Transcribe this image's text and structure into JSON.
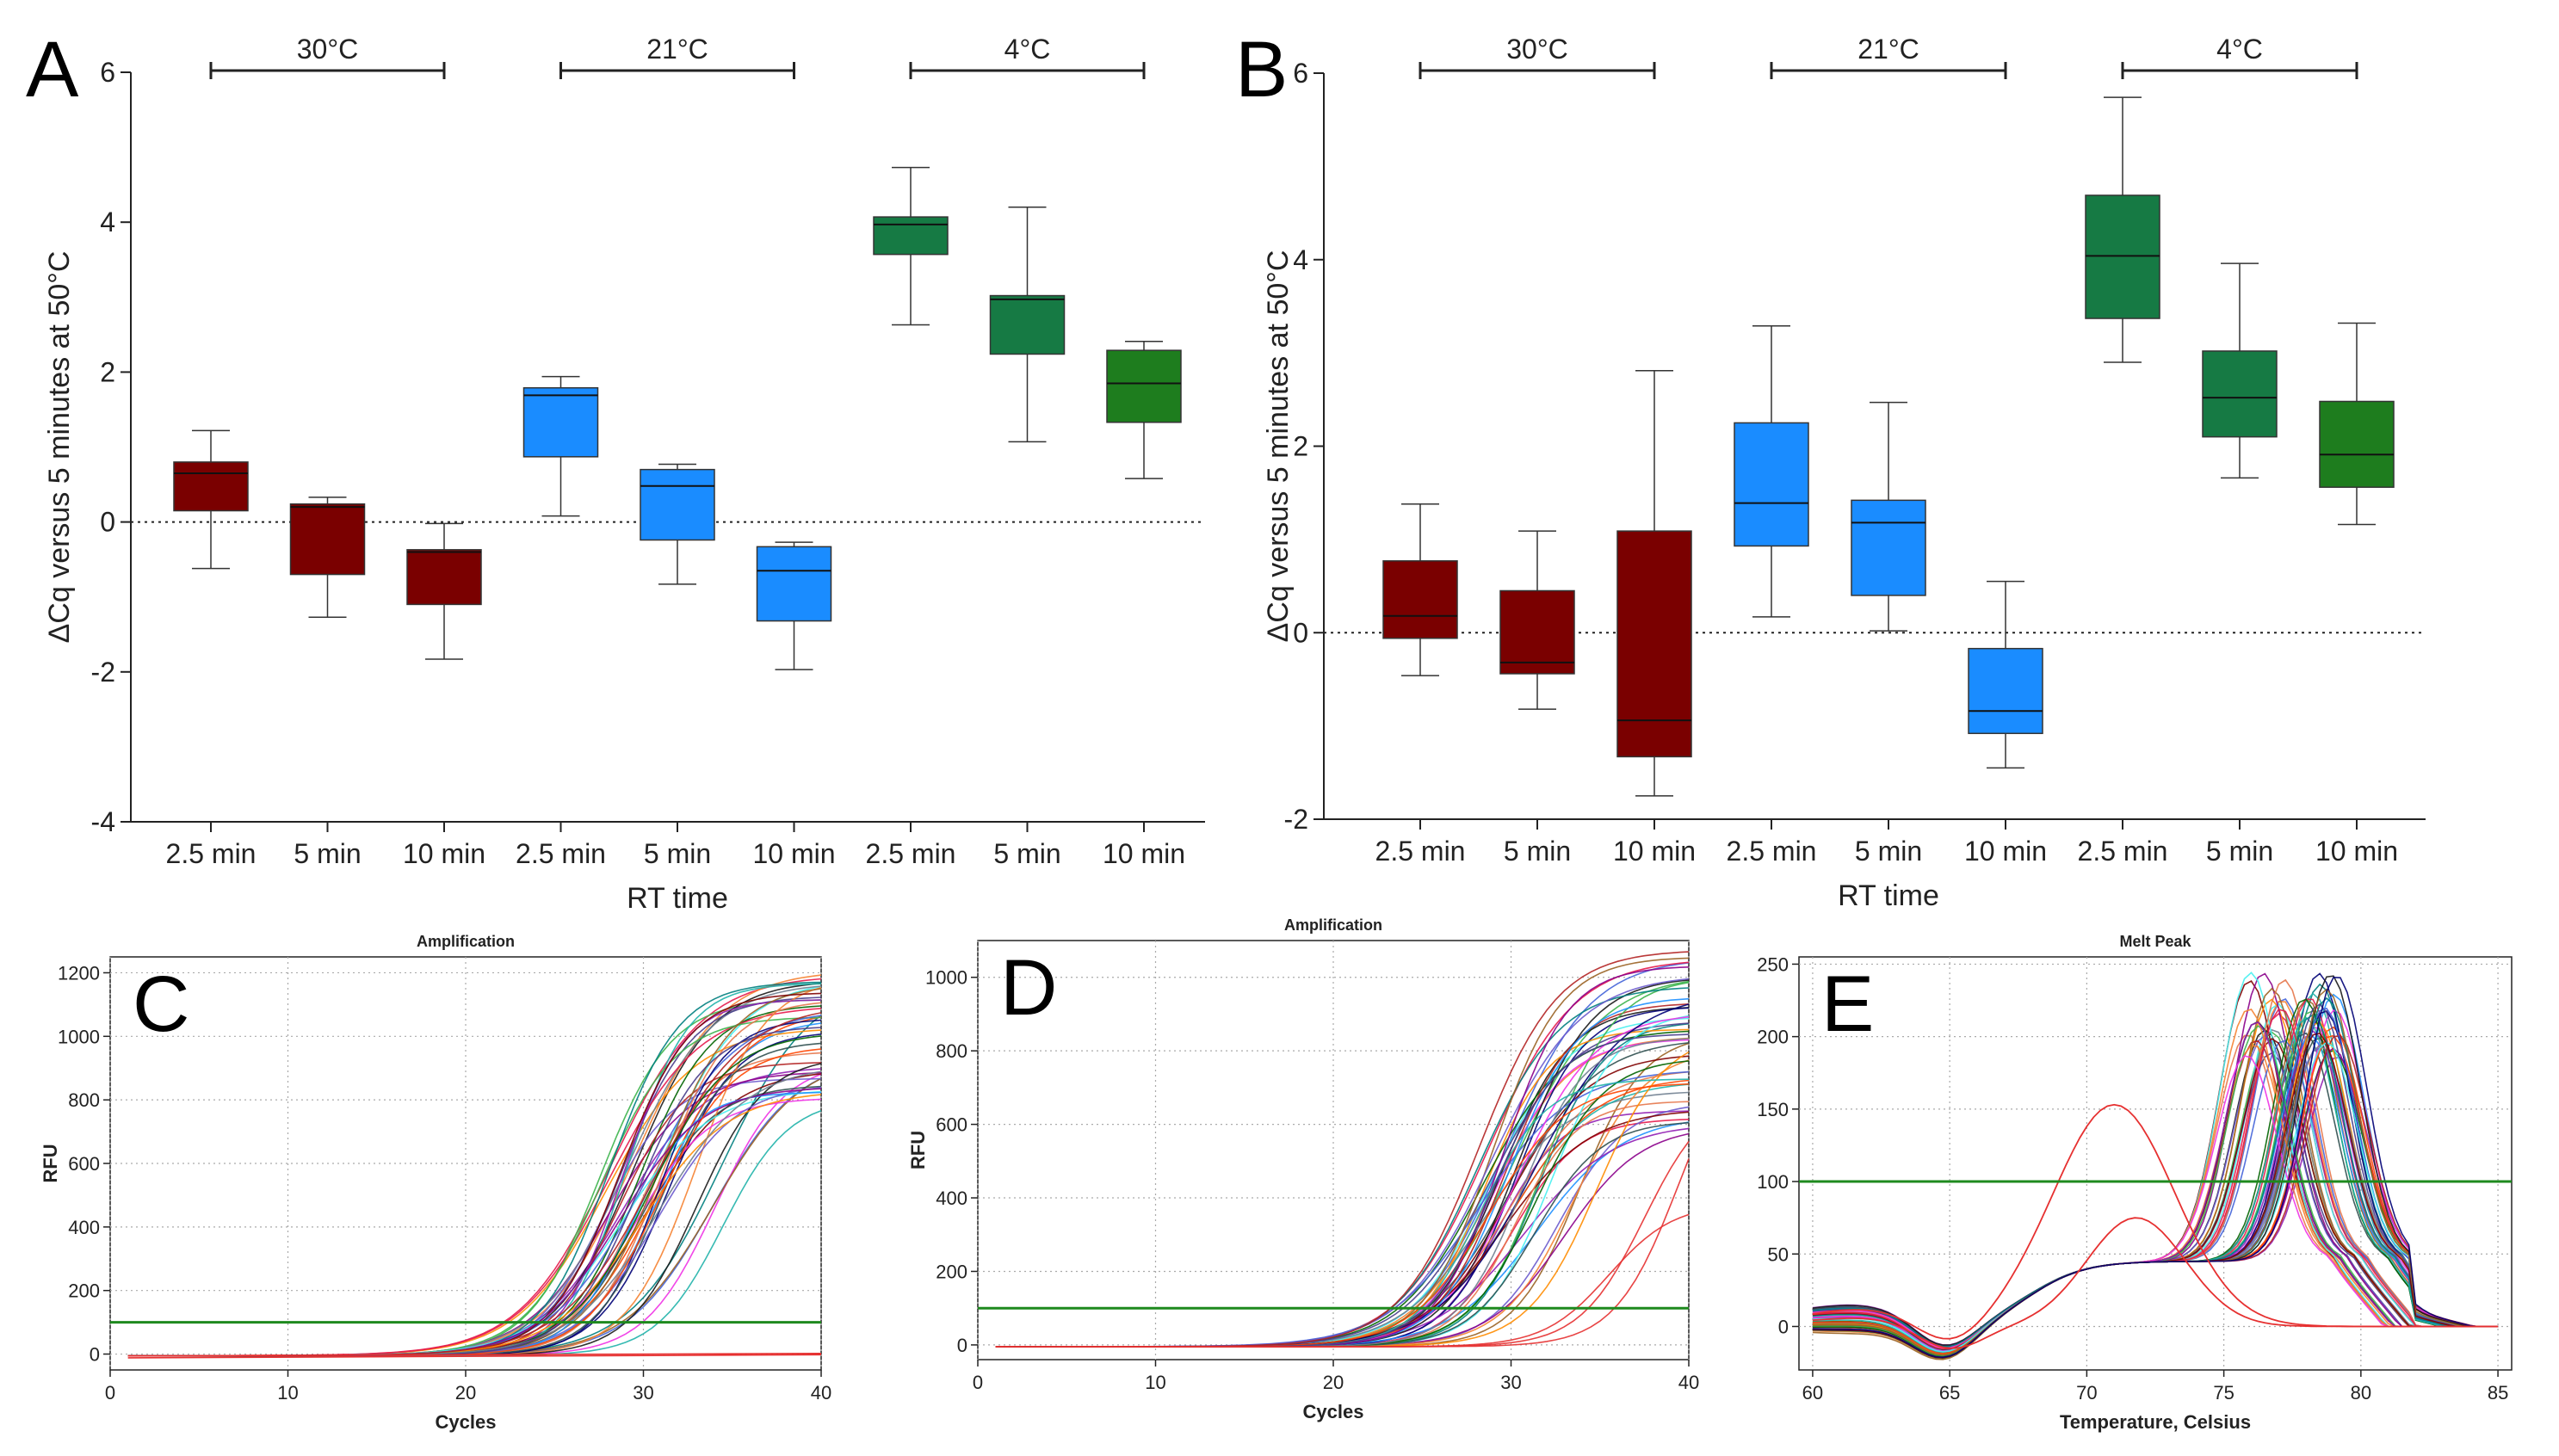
{
  "panels": {
    "A": "A",
    "B": "B",
    "C": "C",
    "D": "D",
    "E": "E"
  },
  "colors": {
    "maroon": "#7a0000",
    "blue": "#1a8cff",
    "darkgreen": "#167a44",
    "green": "#1e7d1e",
    "threshold": "#1e8a1e"
  },
  "chart_data": [
    {
      "id": "A",
      "type": "boxplot",
      "ylabel": "ΔCq versus 5 minutes at 50°C",
      "xlabel": "RT time",
      "ylim": [
        -4,
        6
      ],
      "yticks": [
        -4,
        -2,
        0,
        2,
        4,
        6
      ],
      "groups": [
        {
          "label": "30°C",
          "boxes": [
            0,
            1,
            2
          ]
        },
        {
          "label": "21°C",
          "boxes": [
            3,
            4,
            5
          ]
        },
        {
          "label": "4°C",
          "boxes": [
            6,
            7,
            8
          ]
        }
      ],
      "reference_line": 0,
      "categories": [
        "2.5 min",
        "5 min",
        "10 min",
        "2.5 min",
        "5 min",
        "10 min",
        "2.5 min",
        "5 min",
        "10 min"
      ],
      "box_colors": [
        "maroon",
        "maroon",
        "maroon",
        "blue",
        "blue",
        "blue",
        "darkgreen",
        "darkgreen",
        "green"
      ],
      "boxes": [
        {
          "min": -0.62,
          "q1": 0.15,
          "median": 0.65,
          "q3": 0.8,
          "max": 1.22
        },
        {
          "min": -1.27,
          "q1": -0.7,
          "median": 0.2,
          "q3": 0.24,
          "max": 0.33
        },
        {
          "min": -1.83,
          "q1": -1.1,
          "median": -0.4,
          "q3": -0.37,
          "max": -0.02
        },
        {
          "min": 0.08,
          "q1": 0.87,
          "median": 1.69,
          "q3": 1.79,
          "max": 1.94
        },
        {
          "min": -0.83,
          "q1": -0.24,
          "median": 0.48,
          "q3": 0.7,
          "max": 0.77
        },
        {
          "min": -1.97,
          "q1": -1.32,
          "median": -0.65,
          "q3": -0.33,
          "max": -0.27
        },
        {
          "min": 2.63,
          "q1": 3.57,
          "median": 3.97,
          "q3": 4.07,
          "max": 4.73
        },
        {
          "min": 1.07,
          "q1": 2.24,
          "median": 2.97,
          "q3": 3.02,
          "max": 4.2
        },
        {
          "min": 0.58,
          "q1": 1.33,
          "median": 1.85,
          "q3": 2.29,
          "max": 2.41
        }
      ]
    },
    {
      "id": "B",
      "type": "boxplot",
      "ylabel": "ΔCq versus 5 minutes at 50°C",
      "xlabel": "RT time",
      "ylim": [
        -2,
        6
      ],
      "yticks": [
        -2,
        0,
        2,
        4,
        6
      ],
      "groups": [
        {
          "label": "30°C",
          "boxes": [
            0,
            1,
            2
          ]
        },
        {
          "label": "21°C",
          "boxes": [
            3,
            4,
            5
          ]
        },
        {
          "label": "4°C",
          "boxes": [
            6,
            7,
            8
          ]
        }
      ],
      "reference_line": 0,
      "categories": [
        "2.5 min",
        "5 min",
        "10 min",
        "2.5 min",
        "5 min",
        "10 min",
        "2.5 min",
        "5 min",
        "10 min"
      ],
      "box_colors": [
        "maroon",
        "maroon",
        "maroon",
        "blue",
        "blue",
        "blue",
        "darkgreen",
        "darkgreen",
        "green"
      ],
      "boxes": [
        {
          "min": -0.46,
          "q1": -0.06,
          "median": 0.18,
          "q3": 0.77,
          "max": 1.38
        },
        {
          "min": -0.82,
          "q1": -0.44,
          "median": -0.32,
          "q3": 0.45,
          "max": 1.09
        },
        {
          "min": -1.75,
          "q1": -1.33,
          "median": -0.94,
          "q3": 1.09,
          "max": 2.81
        },
        {
          "min": 0.17,
          "q1": 0.93,
          "median": 1.39,
          "q3": 2.25,
          "max": 3.29
        },
        {
          "min": 0.02,
          "q1": 0.4,
          "median": 1.18,
          "q3": 1.42,
          "max": 2.47
        },
        {
          "min": -1.45,
          "q1": -1.08,
          "median": -0.84,
          "q3": -0.17,
          "max": 0.55
        },
        {
          "min": 2.9,
          "q1": 3.37,
          "median": 4.04,
          "q3": 4.69,
          "max": 5.74
        },
        {
          "min": 1.66,
          "q1": 2.1,
          "median": 2.52,
          "q3": 3.02,
          "max": 3.96
        },
        {
          "min": 1.16,
          "q1": 1.56,
          "median": 1.91,
          "q3": 2.48,
          "max": 3.32
        }
      ]
    },
    {
      "id": "C",
      "type": "line",
      "title": "Amplification",
      "xlabel": "Cycles",
      "ylabel": "RFU",
      "xlim": [
        0,
        40
      ],
      "ylim": [
        -50,
        1250
      ],
      "xticks": [
        0,
        10,
        20,
        30,
        40
      ],
      "yticks": [
        0,
        200,
        400,
        600,
        800,
        1000,
        1200
      ],
      "threshold": 100,
      "curve_family": {
        "midpoint_range": [
          27.5,
          34.5
        ],
        "plateau_range": [
          800,
          1220
        ],
        "negatives": 2
      }
    },
    {
      "id": "D",
      "type": "line",
      "title": "Amplification",
      "xlabel": "Cycles",
      "ylabel": "RFU",
      "xlim": [
        0,
        40
      ],
      "ylim": [
        -40,
        1100
      ],
      "xticks": [
        0,
        10,
        20,
        30,
        40
      ],
      "yticks": [
        0,
        200,
        400,
        600,
        800,
        1000
      ],
      "threshold": 100,
      "curve_family": {
        "midpoint_range": [
          28,
          35
        ],
        "plateau_range": [
          600,
          1080
        ],
        "late": [
          {
            "midpoint": 37.5,
            "plateau": 700
          },
          {
            "midpoint": 39.5,
            "plateau": 900
          },
          {
            "midpoint": 35.5,
            "plateau": 390
          }
        ]
      }
    },
    {
      "id": "E",
      "type": "line",
      "title": "Melt Peak",
      "xlabel": "Temperature, Celsius",
      "ylabel": "",
      "xlim": [
        59.5,
        85.5
      ],
      "ylim": [
        -30,
        255
      ],
      "xticks": [
        60,
        65,
        70,
        75,
        80,
        85
      ],
      "yticks": [
        0,
        50,
        100,
        150,
        200,
        250
      ],
      "threshold": 100,
      "curve_family": {
        "peak_temps": [
          76.5,
          78.6
        ],
        "peak_heights": [
          180,
          240
        ],
        "off_target_peaks": [
          {
            "temp": 71,
            "height": 153
          },
          {
            "temp": 71.8,
            "height": 75
          }
        ]
      }
    }
  ]
}
